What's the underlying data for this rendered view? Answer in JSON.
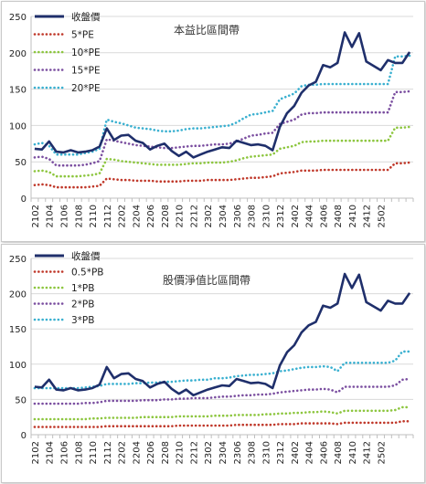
{
  "chart_data": [
    {
      "type": "line",
      "title": "本益比區間帶",
      "xlabel": "",
      "ylabel": "",
      "ylim": [
        0,
        250
      ],
      "yticks": [
        0,
        50,
        100,
        150,
        200,
        250
      ],
      "grid": true,
      "legend_position": "top-left",
      "xtick_labels": [
        "2102",
        "2104",
        "2106",
        "2108",
        "2110",
        "2112",
        "2202",
        "2204",
        "2206",
        "2208",
        "2210",
        "2212",
        "2302",
        "2304",
        "2306",
        "2308",
        "2310",
        "2312",
        "2402",
        "2404",
        "2406",
        "2408",
        "2410",
        "2412",
        "2502"
      ],
      "series": [
        {
          "name": "收盤價",
          "color": "#1f2f6b",
          "style": "solid",
          "values": [
            68,
            67,
            78,
            64,
            63,
            66,
            63,
            64,
            66,
            71,
            96,
            80,
            86,
            87,
            79,
            76,
            67,
            72,
            75,
            65,
            58,
            64,
            56,
            60,
            64,
            67,
            70,
            69,
            79,
            76,
            73,
            74,
            72,
            66,
            98,
            117,
            127,
            145,
            155,
            160,
            183,
            180,
            186,
            228,
            208,
            227,
            188,
            182,
            176,
            190,
            186,
            186,
            201
          ]
        },
        {
          "name": "5*PE",
          "color": "#c0392b",
          "style": "dotted",
          "values": [
            18,
            19,
            18,
            15,
            15,
            15,
            15,
            15,
            16,
            17,
            27,
            26,
            25,
            25,
            24,
            24,
            24,
            23,
            23,
            23,
            23,
            24,
            24,
            24,
            25,
            25,
            25,
            25,
            26,
            27,
            28,
            28,
            29,
            30,
            34,
            35,
            36,
            38,
            38,
            38,
            39,
            39,
            39,
            39,
            39,
            39,
            39,
            39,
            39,
            39,
            48,
            48,
            49
          ]
        },
        {
          "name": "10*PE",
          "color": "#8dc63f",
          "style": "dotted",
          "values": [
            37,
            38,
            36,
            30,
            30,
            30,
            30,
            31,
            32,
            34,
            54,
            53,
            51,
            50,
            49,
            48,
            47,
            46,
            46,
            46,
            46,
            47,
            48,
            48,
            49,
            49,
            49,
            50,
            52,
            55,
            57,
            58,
            59,
            60,
            68,
            70,
            72,
            77,
            78,
            78,
            79,
            79,
            79,
            79,
            79,
            79,
            79,
            79,
            79,
            79,
            97,
            97,
            98
          ]
        },
        {
          "name": "15*PE",
          "color": "#7b4fa0",
          "style": "dotted",
          "values": [
            56,
            57,
            54,
            45,
            45,
            45,
            45,
            46,
            48,
            51,
            81,
            79,
            77,
            75,
            73,
            72,
            71,
            70,
            69,
            69,
            70,
            71,
            72,
            72,
            73,
            74,
            74,
            75,
            78,
            82,
            86,
            87,
            89,
            90,
            102,
            105,
            108,
            115,
            117,
            117,
            118,
            118,
            118,
            118,
            118,
            118,
            118,
            118,
            118,
            118,
            146,
            146,
            147
          ]
        },
        {
          "name": "20*PE",
          "color": "#3ab0d0",
          "style": "dotted",
          "values": [
            74,
            76,
            72,
            60,
            60,
            60,
            60,
            62,
            64,
            68,
            108,
            105,
            103,
            100,
            97,
            96,
            95,
            93,
            92,
            92,
            93,
            95,
            96,
            96,
            97,
            98,
            99,
            100,
            104,
            110,
            115,
            116,
            118,
            120,
            136,
            140,
            144,
            154,
            156,
            156,
            157,
            157,
            157,
            157,
            157,
            157,
            157,
            157,
            157,
            157,
            195,
            195,
            196
          ]
        }
      ]
    },
    {
      "type": "line",
      "title": "股價淨值比區間帶",
      "xlabel": "",
      "ylabel": "",
      "ylim": [
        0,
        250
      ],
      "yticks": [
        0,
        50,
        100,
        150,
        200,
        250
      ],
      "grid": true,
      "legend_position": "top-left",
      "xtick_labels": [
        "2102",
        "2104",
        "2106",
        "2108",
        "2110",
        "2112",
        "2202",
        "2204",
        "2206",
        "2208",
        "2210",
        "2212",
        "2302",
        "2304",
        "2306",
        "2308",
        "2310",
        "2312",
        "2402",
        "2404",
        "2406",
        "2408",
        "2410",
        "2412",
        "2502"
      ],
      "series": [
        {
          "name": "收盤價",
          "color": "#1f2f6b",
          "style": "solid",
          "values": [
            68,
            67,
            78,
            64,
            63,
            66,
            63,
            64,
            66,
            71,
            96,
            80,
            86,
            87,
            79,
            76,
            67,
            72,
            75,
            65,
            58,
            64,
            56,
            60,
            64,
            67,
            70,
            69,
            79,
            76,
            73,
            74,
            72,
            66,
            98,
            117,
            127,
            145,
            155,
            160,
            183,
            180,
            186,
            228,
            208,
            227,
            188,
            182,
            176,
            190,
            186,
            186,
            201
          ]
        },
        {
          "name": "0.5*PB",
          "color": "#c0392b",
          "style": "dotted",
          "values": [
            11,
            11,
            11,
            11,
            11,
            11,
            11,
            11,
            11,
            11,
            12,
            12,
            12,
            12,
            12,
            12,
            12,
            12,
            12,
            12,
            13,
            13,
            13,
            13,
            13,
            13,
            13,
            13,
            14,
            14,
            14,
            14,
            14,
            14,
            15,
            15,
            15,
            16,
            16,
            16,
            16,
            16,
            15,
            17,
            17,
            17,
            17,
            17,
            17,
            17,
            17,
            19,
            19
          ]
        },
        {
          "name": "1*PB",
          "color": "#8dc63f",
          "style": "dotted",
          "values": [
            22,
            22,
            22,
            22,
            22,
            22,
            22,
            22,
            23,
            23,
            24,
            24,
            24,
            24,
            24,
            25,
            25,
            25,
            25,
            25,
            26,
            26,
            26,
            26,
            26,
            27,
            27,
            27,
            28,
            28,
            28,
            28,
            29,
            29,
            30,
            30,
            31,
            31,
            32,
            32,
            33,
            32,
            30,
            34,
            34,
            34,
            34,
            34,
            34,
            34,
            35,
            39,
            39
          ]
        },
        {
          "name": "2*PB",
          "color": "#7b4fa0",
          "style": "dotted",
          "values": [
            44,
            44,
            44,
            44,
            44,
            44,
            44,
            45,
            45,
            46,
            48,
            48,
            48,
            48,
            48,
            49,
            49,
            49,
            50,
            50,
            51,
            51,
            52,
            52,
            52,
            53,
            54,
            54,
            55,
            56,
            56,
            57,
            57,
            58,
            60,
            61,
            62,
            63,
            64,
            64,
            65,
            64,
            60,
            68,
            68,
            68,
            68,
            68,
            68,
            68,
            70,
            78,
            79
          ]
        },
        {
          "name": "3*PB",
          "color": "#3ab0d0",
          "style": "dotted",
          "values": [
            66,
            66,
            66,
            66,
            66,
            66,
            66,
            67,
            68,
            69,
            72,
            72,
            72,
            72,
            73,
            73,
            74,
            74,
            75,
            75,
            76,
            77,
            77,
            78,
            78,
            80,
            80,
            81,
            83,
            84,
            85,
            85,
            86,
            87,
            90,
            91,
            93,
            95,
            96,
            96,
            97,
            96,
            90,
            102,
            102,
            102,
            102,
            102,
            102,
            102,
            105,
            118,
            118
          ]
        }
      ]
    }
  ]
}
